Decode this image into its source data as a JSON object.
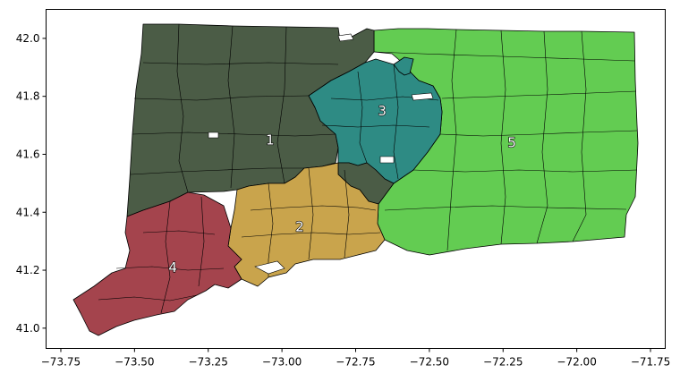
{
  "chart_data": {
    "type": "map",
    "x_ticks": [
      -73.75,
      -73.5,
      -73.25,
      -73.0,
      -72.75,
      -72.5,
      -72.25,
      -72.0,
      -71.75
    ],
    "x_tick_labels": [
      "−73.75",
      "−73.50",
      "−73.25",
      "−73.00",
      "−72.75",
      "−72.50",
      "−72.25",
      "−72.00",
      "−71.75"
    ],
    "y_ticks": [
      41.0,
      41.2,
      41.4,
      41.6,
      41.8,
      42.0
    ],
    "y_tick_labels": [
      "41.0",
      "41.2",
      "41.4",
      "41.6",
      "41.8",
      "42.0"
    ],
    "xlim": [
      -73.8,
      -71.7
    ],
    "ylim": [
      40.93,
      42.1
    ],
    "districts": [
      {
        "label": "1",
        "color": "#4b5c46",
        "label_lon": -73.04,
        "label_lat": 41.65
      },
      {
        "label": "2",
        "color": "#c9a44c",
        "label_lon": -72.94,
        "label_lat": 41.35
      },
      {
        "label": "3",
        "color": "#2e8b84",
        "label_lon": -72.66,
        "label_lat": 41.75
      },
      {
        "label": "4",
        "color": "#a4444d",
        "label_lon": -73.37,
        "label_lat": 41.21
      },
      {
        "label": "5",
        "color": "#63cc52",
        "label_lon": -72.22,
        "label_lat": 41.64
      }
    ]
  }
}
